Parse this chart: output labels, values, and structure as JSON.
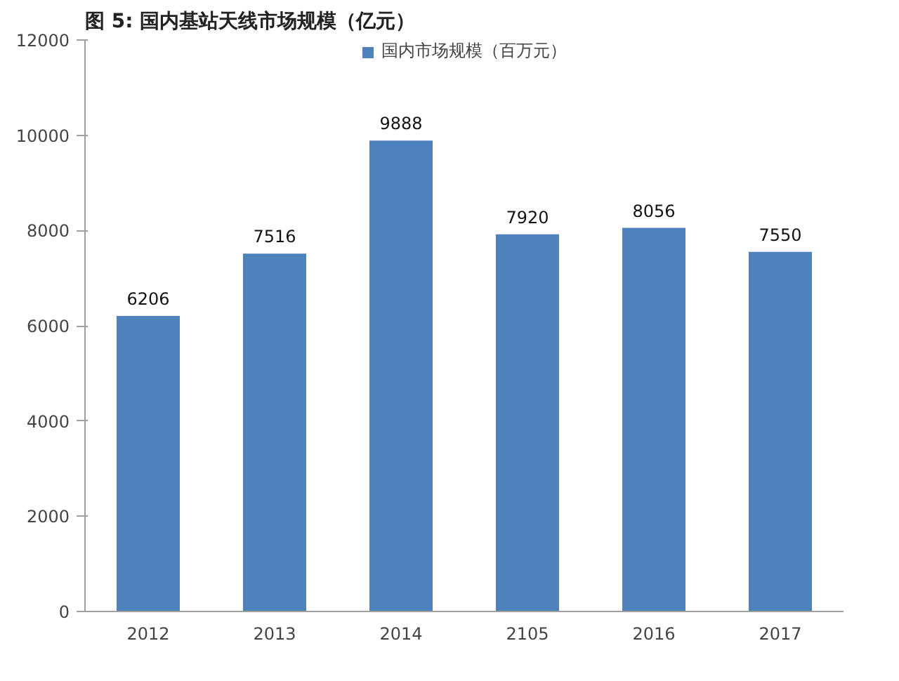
{
  "chart_data": {
    "type": "bar",
    "title": "图 5: 国内基站天线市场规模（亿元）",
    "categories": [
      "2012",
      "2013",
      "2014",
      "2105",
      "2016",
      "2017"
    ],
    "series": [
      {
        "name": "国内市场规模（百万元）",
        "color": "#4f81bd",
        "values": [
          6206,
          7516,
          9888,
          7920,
          8056,
          7550
        ]
      }
    ],
    "ylim": [
      0,
      12000
    ],
    "yticks": [
      0,
      2000,
      4000,
      6000,
      8000,
      10000,
      12000
    ],
    "grid": false,
    "legend": "top",
    "data_labels": true
  }
}
